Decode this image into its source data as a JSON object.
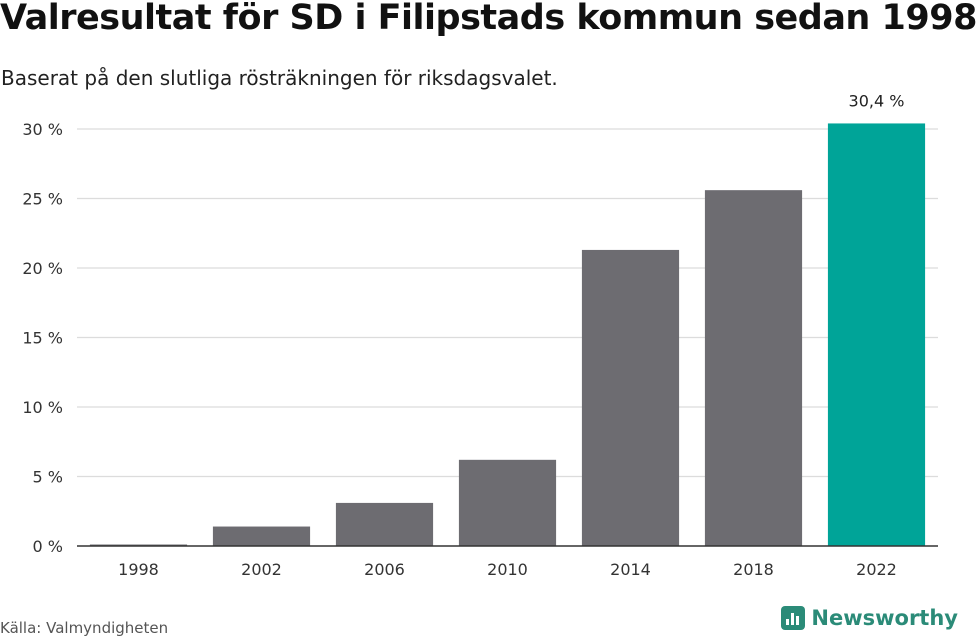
{
  "header": {
    "title": "Valresultat för SD i Filipstads kommun sedan 1998",
    "subtitle": "Baserat på den slutliga rösträkningen för riksdagsvalet."
  },
  "footer": {
    "source": "Källa: Valmyndigheten",
    "brand": "Newsworthy",
    "brand_icon": "newsworthy-bar-logo-icon"
  },
  "chart_data": {
    "type": "bar",
    "title": "Valresultat för SD i Filipstads kommun sedan 1998",
    "subtitle": "Baserat på den slutliga rösträkningen för riksdagsvalet.",
    "categories": [
      "1998",
      "2002",
      "2006",
      "2010",
      "2014",
      "2018",
      "2022"
    ],
    "values": [
      0.1,
      1.4,
      3.1,
      6.2,
      21.3,
      25.6,
      30.4
    ],
    "labels": [
      "",
      "",
      "",
      "",
      "",
      "",
      "30,4 %"
    ],
    "ylim": [
      0,
      30
    ],
    "yticks": [
      0,
      5,
      10,
      15,
      20,
      25,
      30
    ],
    "ytick_labels": [
      "0 %",
      "5 %",
      "10 %",
      "15 %",
      "20 %",
      "25 %",
      "30 %"
    ],
    "xlabel": "",
    "ylabel": "",
    "grid": true,
    "colors": {
      "bar": "#6d6c71",
      "highlight": "#00a498",
      "grid": "#dcdcdc",
      "axis": "#333333"
    },
    "highlight_index": 6
  }
}
